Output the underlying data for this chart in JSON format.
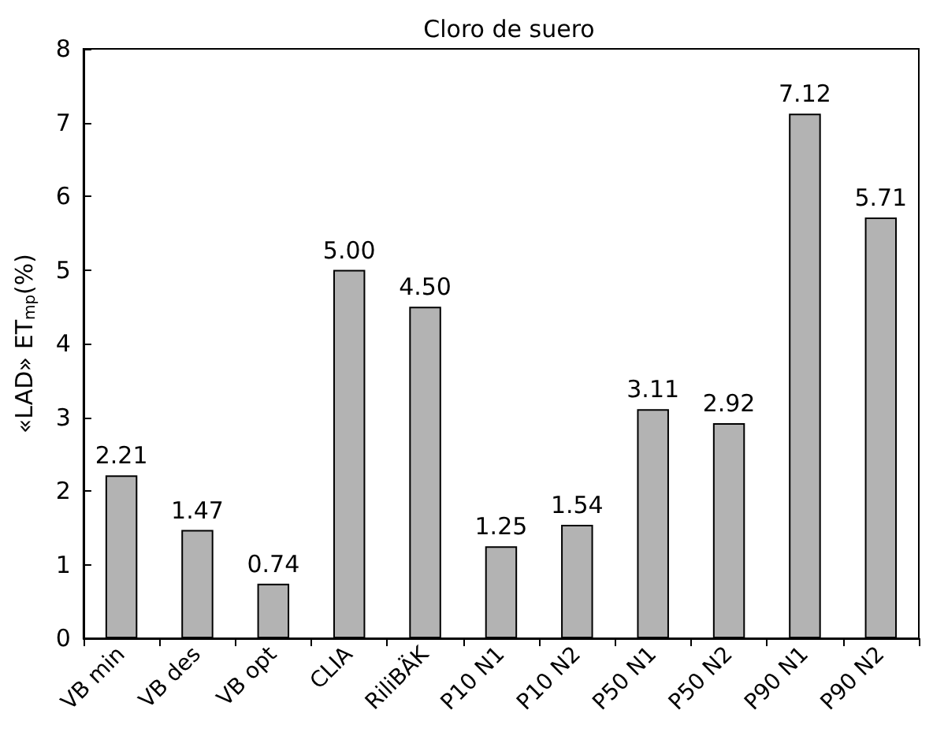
{
  "chart_data": {
    "type": "bar",
    "title": "Cloro de suero",
    "ylabel": "«LAD» ET$_{mp}$(%)",
    "categories": [
      "VB min",
      "VB des",
      "VB opt",
      "CLIA",
      "RiliBÄK",
      "P10 N1",
      "P10 N2",
      "P50 N1",
      "P50 N2",
      "P90 N1",
      "P90 N2"
    ],
    "values": [
      2.21,
      1.47,
      0.74,
      5.0,
      4.5,
      1.25,
      1.54,
      3.11,
      2.92,
      7.12,
      5.71
    ],
    "value_labels": [
      "2.21",
      "1.47",
      "0.74",
      "5.00",
      "4.50",
      "1.25",
      "1.54",
      "3.11",
      "2.92",
      "7.12",
      "5.71"
    ],
    "color": "#b3b3b3",
    "ylim": [
      0,
      8
    ],
    "yticks": [
      0,
      1,
      2,
      3,
      4,
      5,
      6,
      7,
      8
    ],
    "grid": false
  }
}
